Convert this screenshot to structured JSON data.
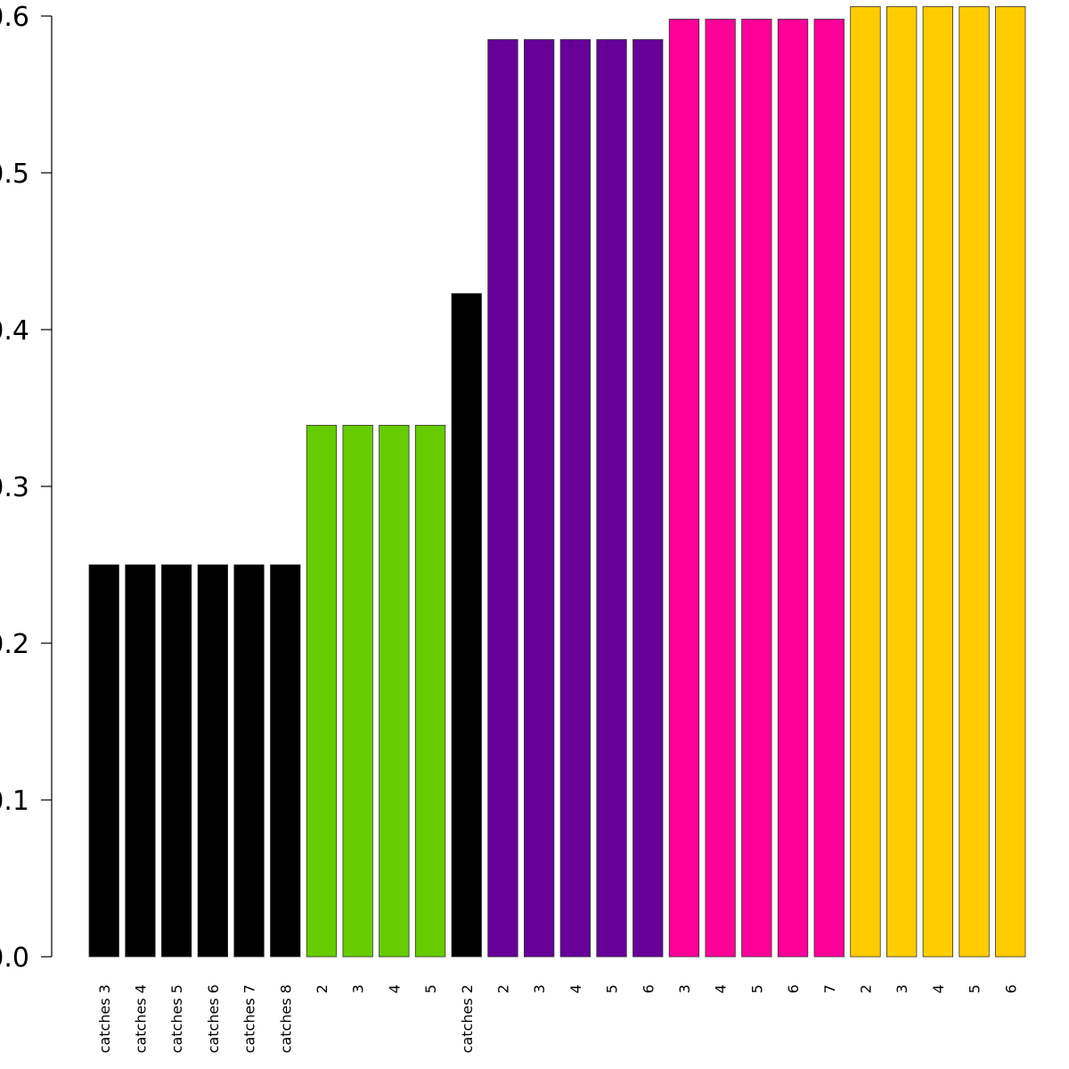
{
  "chart_data": {
    "type": "bar",
    "title": "",
    "xlabel": "",
    "ylabel": "",
    "ylim": [
      0,
      0.6
    ],
    "yticks": [
      "0.0",
      "0.1",
      "0.2",
      "0.3",
      "0.4",
      "0.5",
      "0.6"
    ],
    "grid": false,
    "legend": "none",
    "categories": [
      "catches 3",
      "catches 4",
      "catches 5",
      "catches 6",
      "catches 7",
      "catches 8",
      "2",
      "3",
      "4",
      "5",
      "catches 2",
      "2",
      "3",
      "4",
      "5",
      "6",
      "3",
      "4",
      "5",
      "6",
      "7",
      "2",
      "3",
      "4",
      "5",
      "6"
    ],
    "values": [
      0.25,
      0.25,
      0.25,
      0.25,
      0.25,
      0.25,
      0.339,
      0.339,
      0.339,
      0.339,
      0.423,
      0.585,
      0.585,
      0.585,
      0.585,
      0.585,
      0.598,
      0.598,
      0.598,
      0.598,
      0.598,
      0.606,
      0.606,
      0.606,
      0.606,
      0.606
    ],
    "colors": [
      "#000000",
      "#000000",
      "#000000",
      "#000000",
      "#000000",
      "#000000",
      "#66cc00",
      "#66cc00",
      "#66cc00",
      "#66cc00",
      "#000000",
      "#660099",
      "#660099",
      "#660099",
      "#660099",
      "#660099",
      "#ff0099",
      "#ff0099",
      "#ff0099",
      "#ff0099",
      "#ff0099",
      "#ffcc00",
      "#ffcc00",
      "#ffcc00",
      "#ffcc00",
      "#ffcc00"
    ]
  }
}
